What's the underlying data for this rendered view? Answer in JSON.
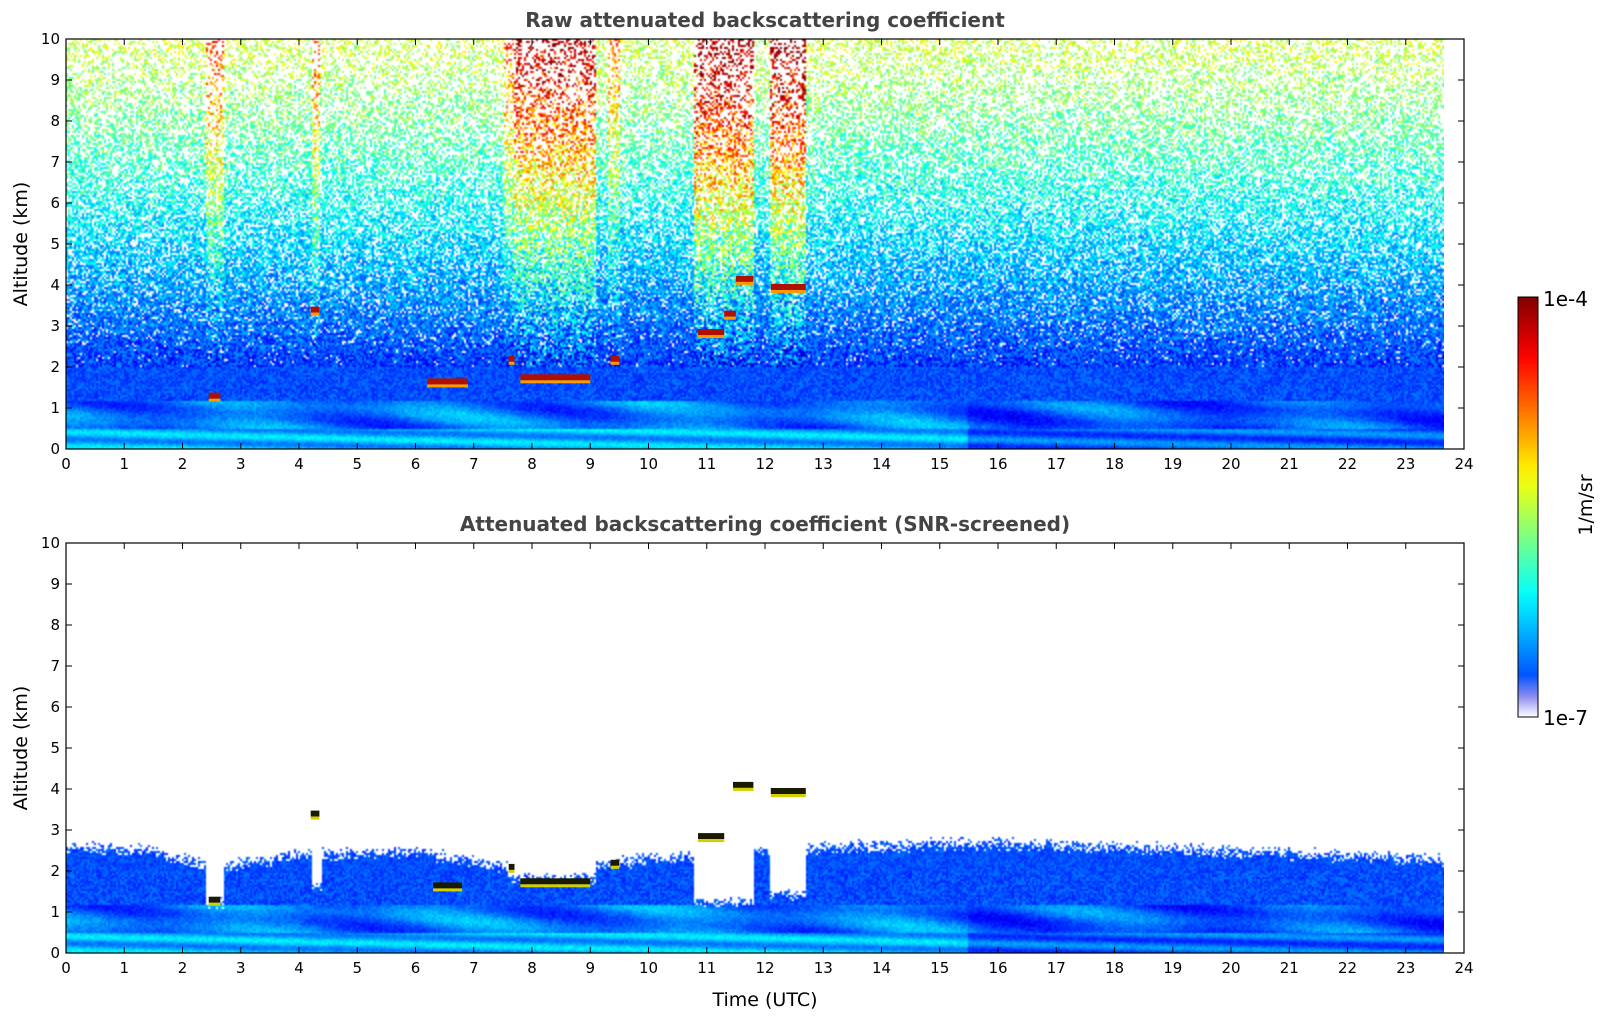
{
  "chart_data": [
    {
      "type": "heatmap",
      "title": "Raw attenuated backscattering coefficient",
      "xlabel": "",
      "ylabel": "Altitude (km)",
      "xlim": [
        0,
        24
      ],
      "ylim": [
        0,
        10
      ],
      "data_x_extent": [
        0,
        23.7
      ],
      "x_ticks": [
        0,
        1,
        2,
        3,
        4,
        5,
        6,
        7,
        8,
        9,
        10,
        11,
        12,
        13,
        14,
        15,
        16,
        17,
        18,
        19,
        20,
        21,
        22,
        23,
        24
      ],
      "y_ticks": [
        0,
        1,
        2,
        3,
        4,
        5,
        6,
        7,
        8,
        9,
        10
      ],
      "grid": false,
      "noise_columns": [
        {
          "t0": 2.4,
          "t1": 2.7,
          "strength": 0.5
        },
        {
          "t0": 4.2,
          "t1": 4.35,
          "strength": 0.45
        },
        {
          "t0": 7.5,
          "t1": 7.7,
          "strength": 0.45
        },
        {
          "t0": 7.7,
          "t1": 9.1,
          "strength": 0.8
        },
        {
          "t0": 9.3,
          "t1": 9.5,
          "strength": 0.4
        },
        {
          "t0": 10.8,
          "t1": 11.8,
          "strength": 0.9
        },
        {
          "t0": 12.1,
          "t1": 12.7,
          "strength": 0.9
        }
      ],
      "cloud_layers": [
        {
          "t0": 2.45,
          "t1": 2.65,
          "alt": 1.3
        },
        {
          "t0": 4.2,
          "t1": 4.35,
          "alt": 3.4
        },
        {
          "t0": 6.2,
          "t1": 6.9,
          "alt": 1.65
        },
        {
          "t0": 7.6,
          "t1": 7.7,
          "alt": 2.2
        },
        {
          "t0": 7.8,
          "t1": 9.0,
          "alt": 1.75
        },
        {
          "t0": 9.35,
          "t1": 9.5,
          "alt": 2.2
        },
        {
          "t0": 10.85,
          "t1": 11.3,
          "alt": 2.85
        },
        {
          "t0": 11.3,
          "t1": 11.5,
          "alt": 3.3
        },
        {
          "t0": 11.5,
          "t1": 11.8,
          "alt": 4.15
        },
        {
          "t0": 12.1,
          "t1": 12.7,
          "alt": 3.95
        }
      ],
      "boundary_layer_top_km": 1.2
    },
    {
      "type": "heatmap",
      "title": "Attenuated backscattering coefficient (SNR-screened)",
      "xlabel": "Time (UTC)",
      "ylabel": "Altitude (km)",
      "xlim": [
        0,
        24
      ],
      "ylim": [
        0,
        10
      ],
      "data_x_extent": [
        0,
        23.7
      ],
      "x_ticks": [
        0,
        1,
        2,
        3,
        4,
        5,
        6,
        7,
        8,
        9,
        10,
        11,
        12,
        13,
        14,
        15,
        16,
        17,
        18,
        19,
        20,
        21,
        22,
        23,
        24
      ],
      "y_ticks": [
        0,
        1,
        2,
        3,
        4,
        5,
        6,
        7,
        8,
        9,
        10
      ],
      "grid": false,
      "screened_top_km": [
        {
          "t": 0.0,
          "alt": 2.6
        },
        {
          "t": 1.5,
          "alt": 2.5
        },
        {
          "t": 2.5,
          "alt": 2.1
        },
        {
          "t": 4.0,
          "alt": 2.4
        },
        {
          "t": 6.0,
          "alt": 2.5
        },
        {
          "t": 8.0,
          "alt": 2.0
        },
        {
          "t": 10.0,
          "alt": 2.3
        },
        {
          "t": 13.0,
          "alt": 2.6
        },
        {
          "t": 16.0,
          "alt": 2.7
        },
        {
          "t": 20.0,
          "alt": 2.5
        },
        {
          "t": 23.7,
          "alt": 2.3
        }
      ],
      "cloud_layers": [
        {
          "t0": 2.45,
          "t1": 2.65,
          "alt": 1.3
        },
        {
          "t0": 4.2,
          "t1": 4.35,
          "alt": 3.4
        },
        {
          "t0": 6.3,
          "t1": 6.8,
          "alt": 1.65
        },
        {
          "t0": 7.6,
          "t1": 7.7,
          "alt": 2.1
        },
        {
          "t0": 7.8,
          "t1": 9.0,
          "alt": 1.75
        },
        {
          "t0": 9.35,
          "t1": 9.5,
          "alt": 2.2
        },
        {
          "t0": 10.85,
          "t1": 11.3,
          "alt": 2.85
        },
        {
          "t0": 11.45,
          "t1": 11.8,
          "alt": 4.1
        },
        {
          "t0": 12.1,
          "t1": 12.7,
          "alt": 3.95
        }
      ],
      "boundary_layer_top_km": 1.2
    }
  ],
  "colorbar": {
    "label": "1/m/sr",
    "max_label": "1e-4",
    "min_label": "1e-7",
    "scale": "log",
    "colormap": "jet"
  }
}
